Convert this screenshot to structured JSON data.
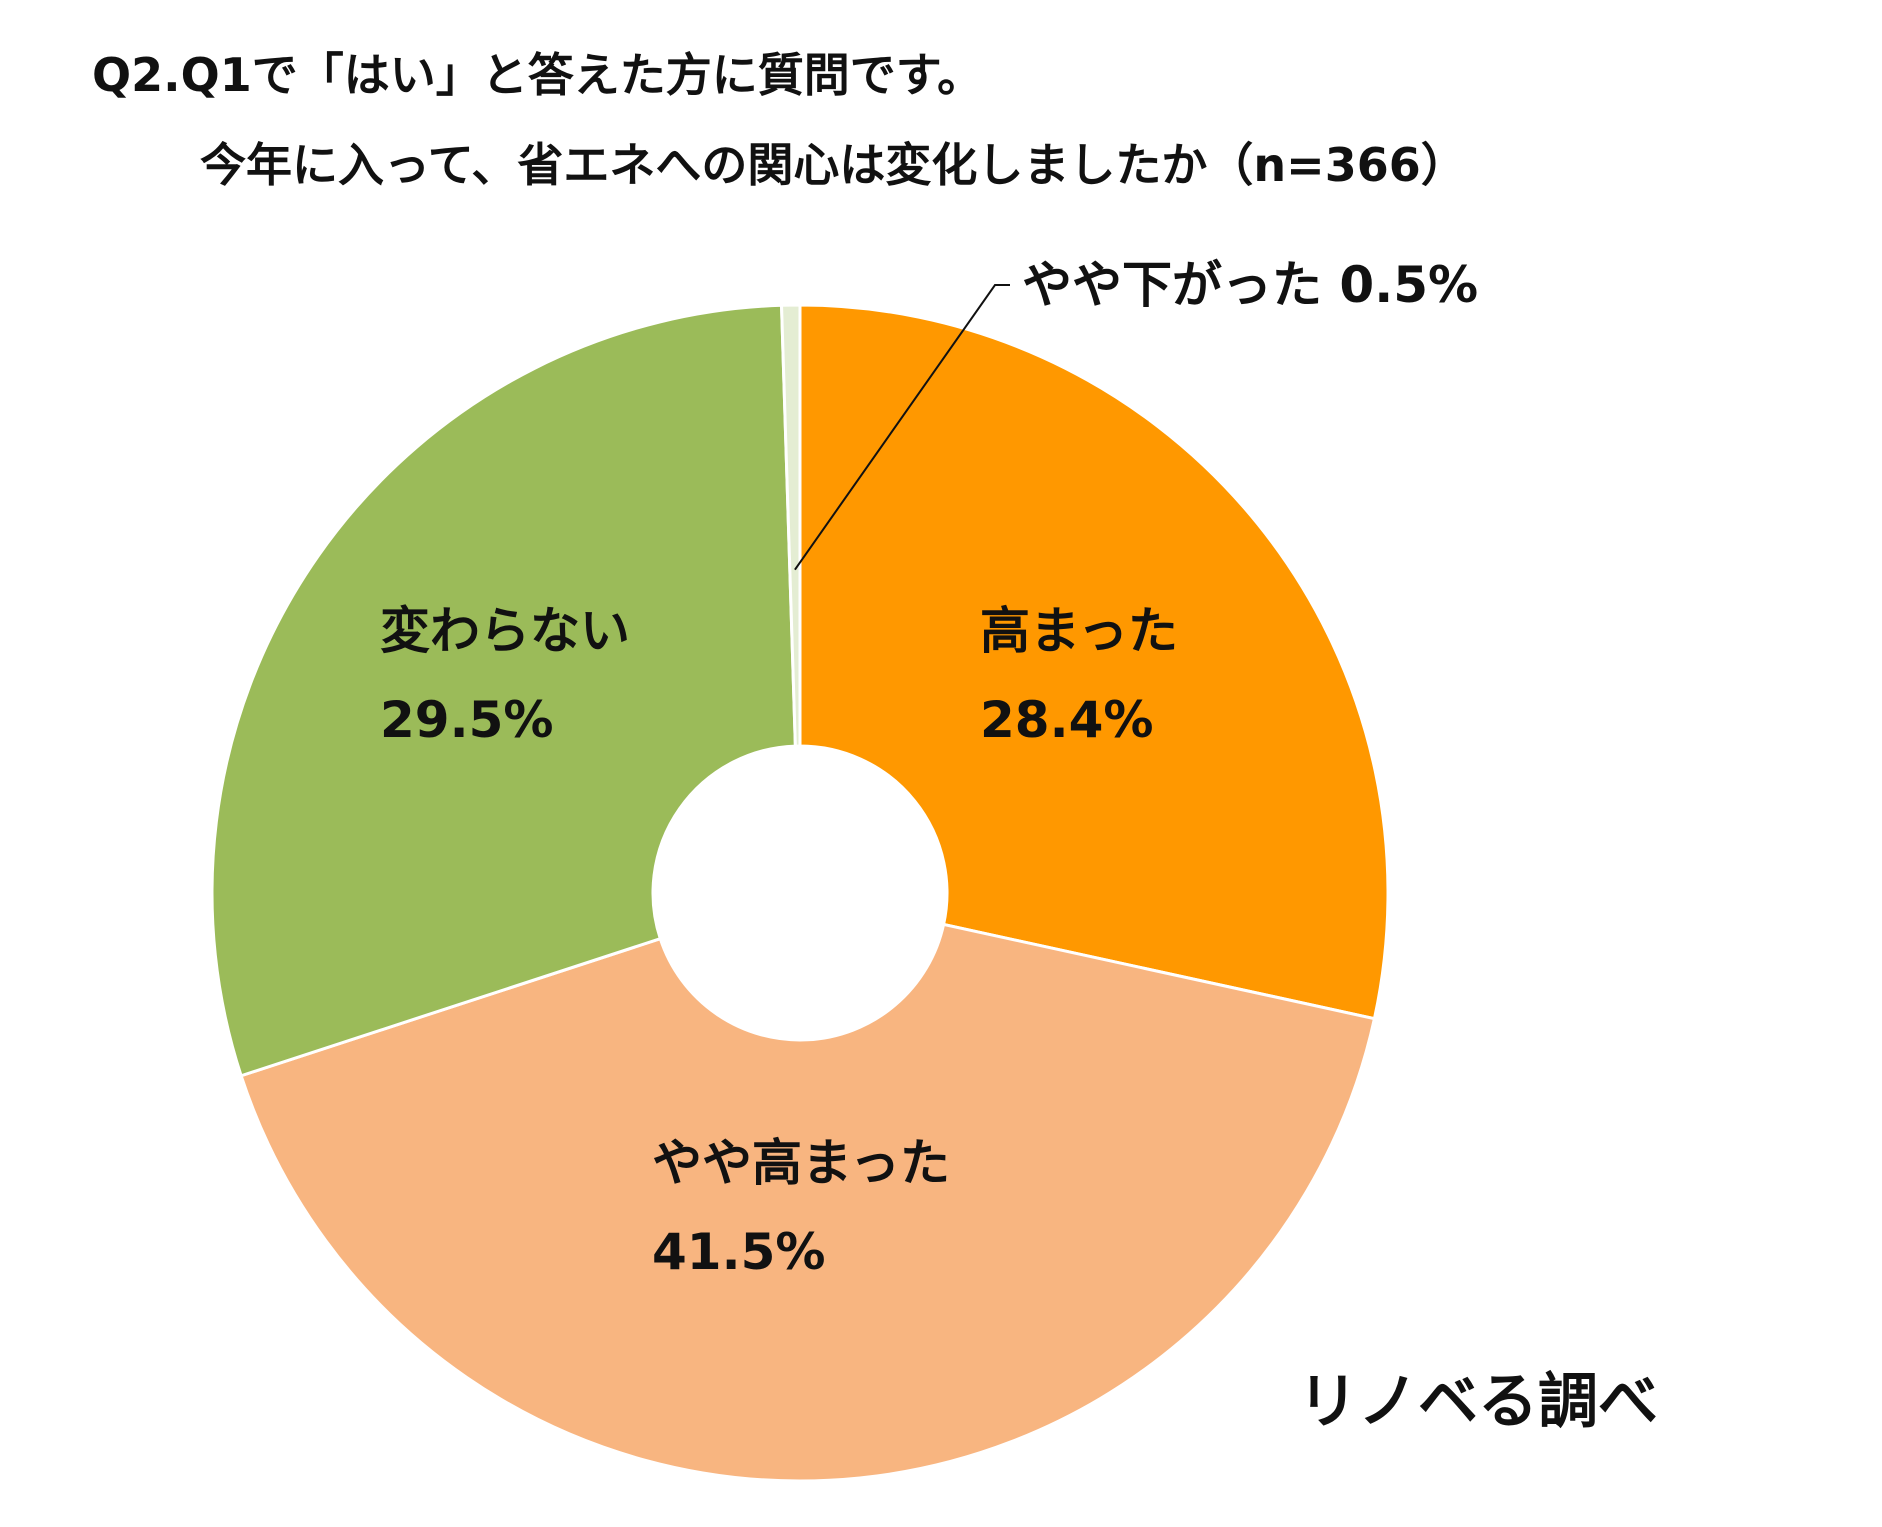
{
  "title_lines": [
    "Q2.Q1で「はい」と答えた方に質問です。",
    "今年に入って、省エネへの関心は変化しましたか（n=366）"
  ],
  "source": "リノベる調べ",
  "chart_data": {
    "type": "pie",
    "donut": true,
    "title": "今年に入って、省エネへの関心は変化しましたか（n=366）",
    "n": 366,
    "start": "12 o'clock, clockwise",
    "slices": [
      {
        "label": "高まった",
        "value": 28.4,
        "value_label": "28.4%",
        "color": "#FF9800"
      },
      {
        "label": "やや高まった",
        "value": 41.5,
        "value_label": "41.5%",
        "color": "#F8B580"
      },
      {
        "label": "変わらない",
        "value": 29.5,
        "value_label": "29.5%",
        "color": "#9BBB59"
      },
      {
        "label": "やや下がった",
        "value": 0.5,
        "value_label": "0.5%",
        "color": "#E4EDD3"
      }
    ]
  }
}
